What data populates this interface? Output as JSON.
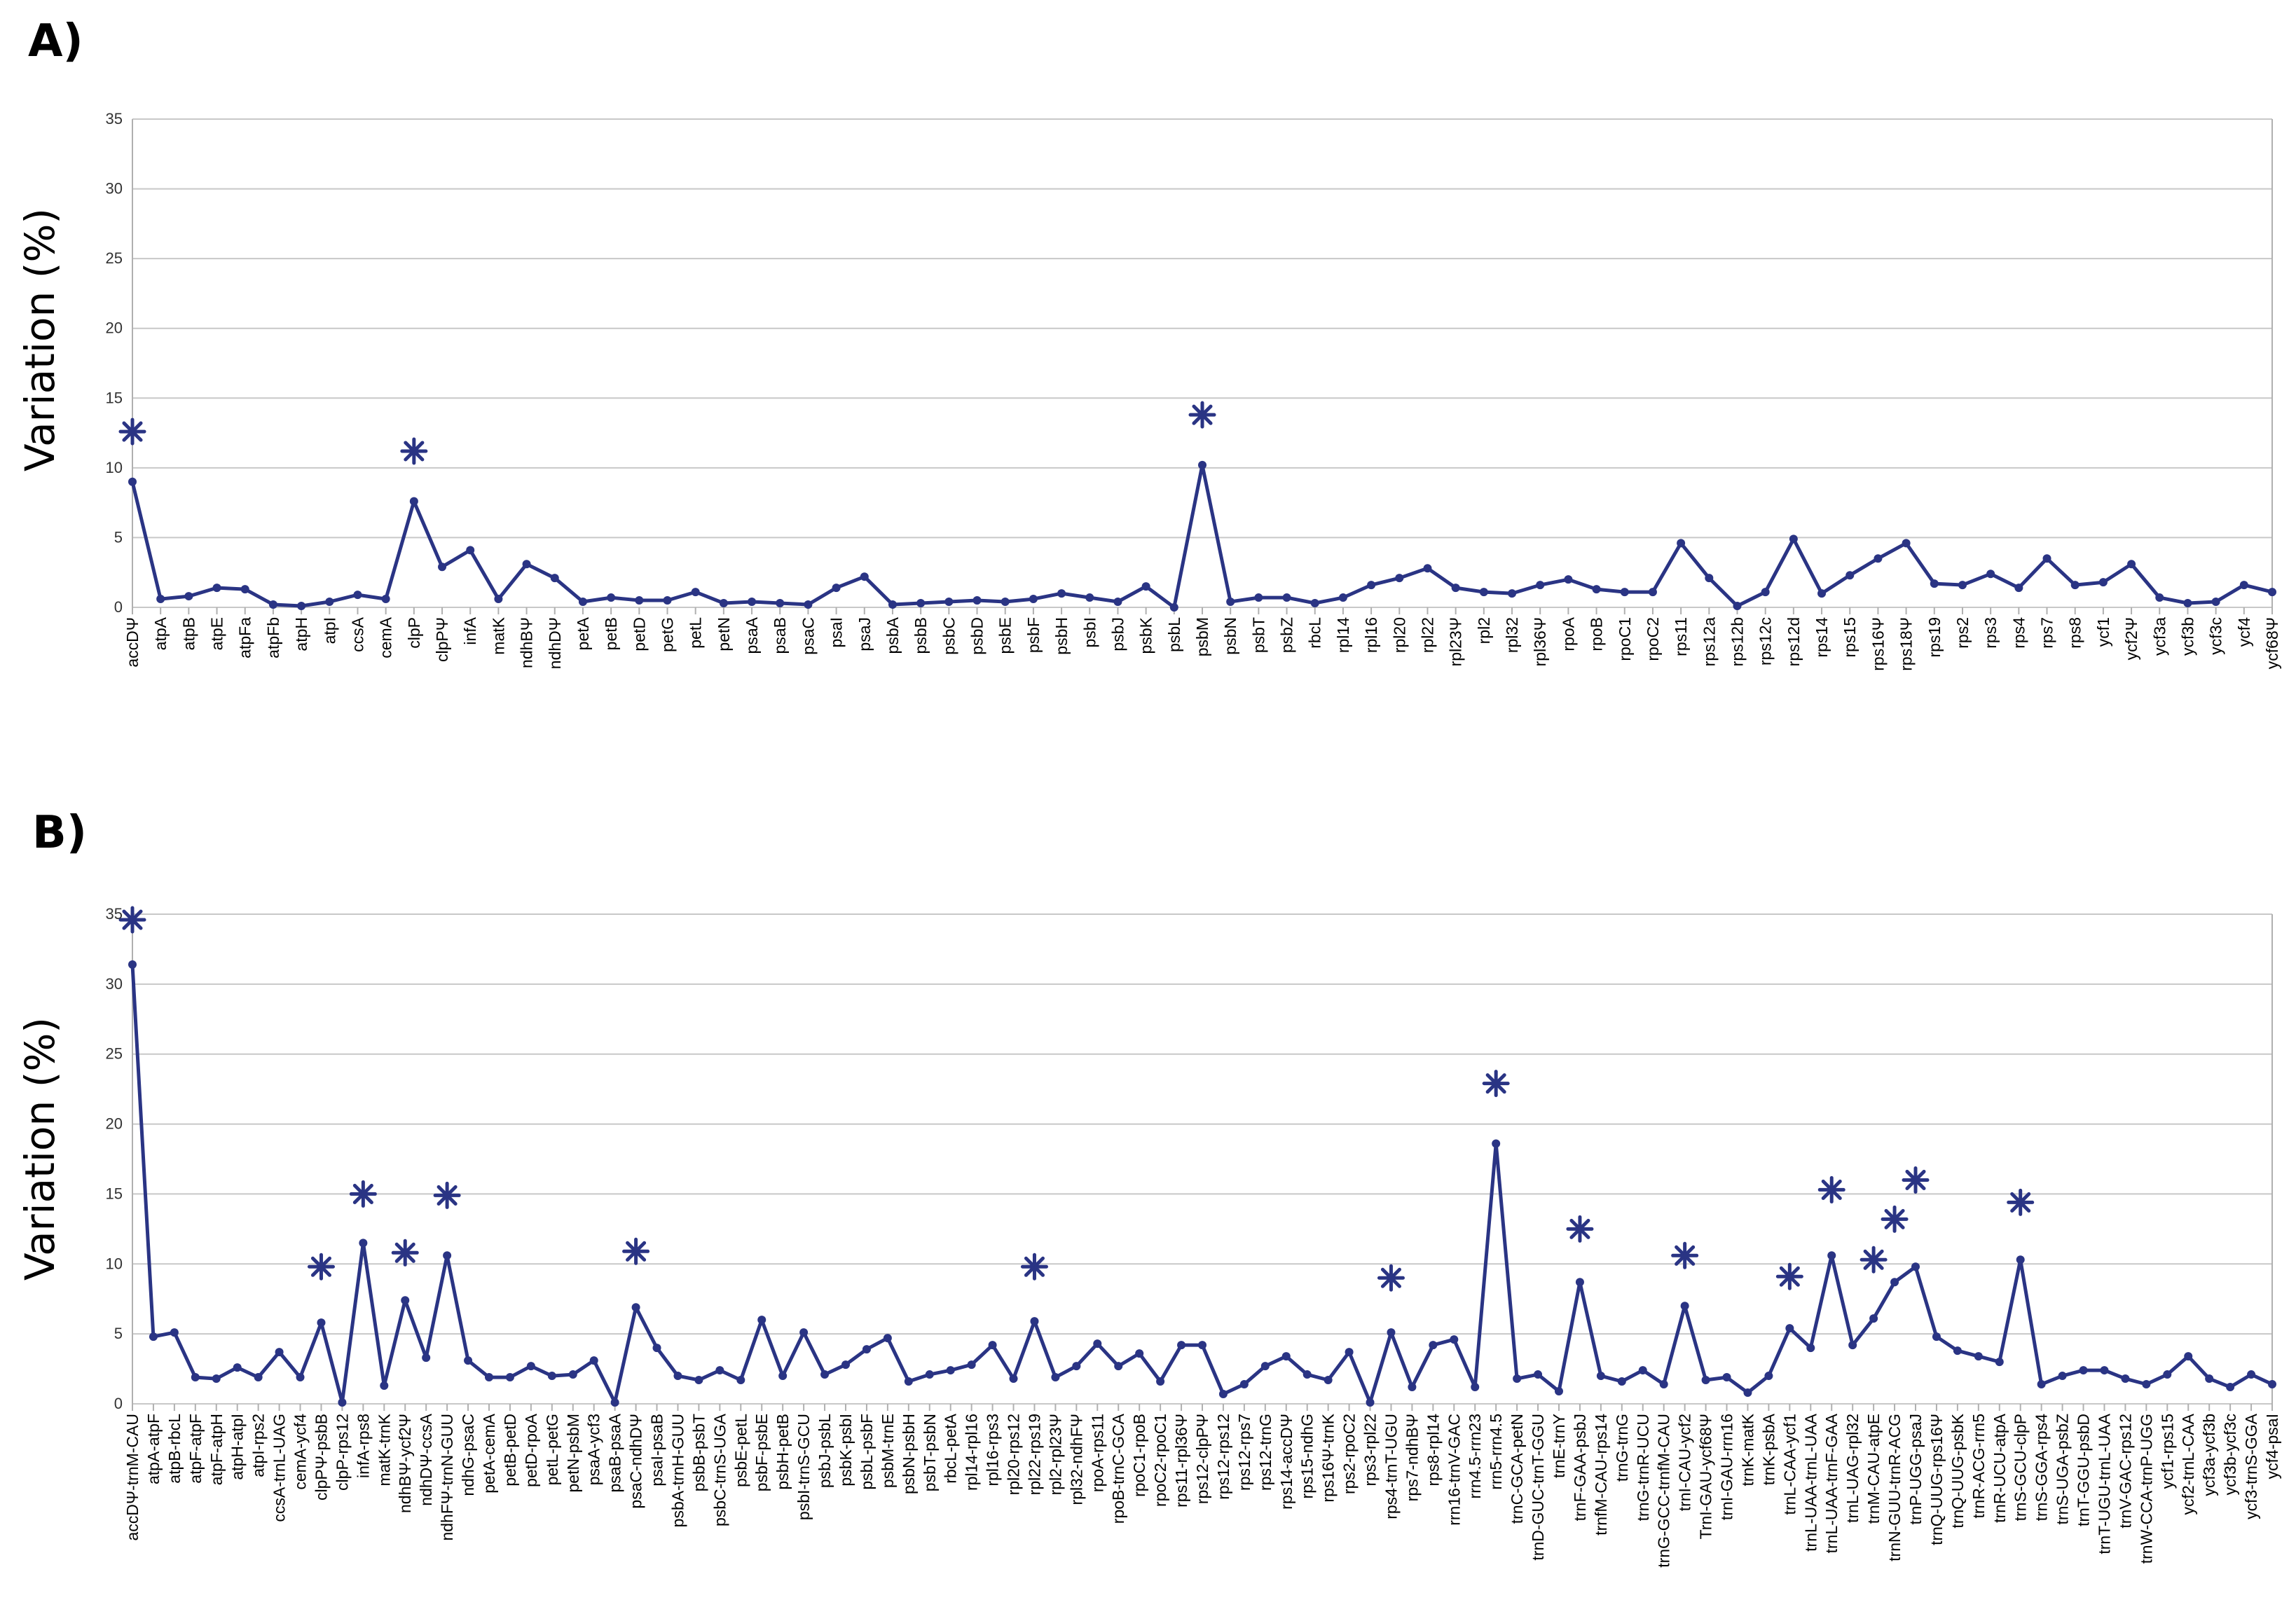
{
  "colors": {
    "series": "#2a3484",
    "grid": "#c8c8c8",
    "text": "#000000"
  },
  "chart_data": [
    {
      "type": "line",
      "panel_label": "A)",
      "title": "",
      "xlabel": "",
      "ylabel": "Variation (%)",
      "ylim": [
        0,
        35
      ],
      "yticks": [
        0,
        5,
        10,
        15,
        20,
        25,
        30,
        35
      ],
      "grid": true,
      "marker": "circle",
      "significance_marker": "asterisk",
      "categories": [
        "accDΨ",
        "atpA",
        "atpB",
        "atpE",
        "atpFa",
        "atpFb",
        "atpH",
        "atpI",
        "ccsA",
        "cemA",
        "clpP",
        "clpPΨ",
        "infA",
        "matK",
        "ndhBΨ",
        "ndhDΨ",
        "petA",
        "petB",
        "petD",
        "petG",
        "petL",
        "petN",
        "psaA",
        "psaB",
        "psaC",
        "psaI",
        "psaJ",
        "psbA",
        "psbB",
        "psbC",
        "psbD",
        "psbE",
        "psbF",
        "psbH",
        "psbI",
        "psbJ",
        "psbK",
        "psbL",
        "psbM",
        "psbN",
        "psbT",
        "psbZ",
        "rbcL",
        "rpl14",
        "rpl16",
        "rpl20",
        "rpl22",
        "rpl23Ψ",
        "rpl2",
        "rpl32",
        "rpl36Ψ",
        "rpoA",
        "rpoB",
        "rpoC1",
        "rpoC2",
        "rps11",
        "rps12a",
        "rps12b",
        "rps12c",
        "rps12d",
        "rps14",
        "rps15",
        "rps16Ψ",
        "rps18Ψ",
        "rps19",
        "rps2",
        "rps3",
        "rps4",
        "rps7",
        "rps8",
        "ycf1",
        "ycf2Ψ",
        "ycf3a",
        "ycf3b",
        "ycf3c",
        "ycf4",
        "ycf68Ψ"
      ],
      "values": [
        9.0,
        0.6,
        0.8,
        1.4,
        1.3,
        0.2,
        0.1,
        0.4,
        0.9,
        0.6,
        7.6,
        2.9,
        4.1,
        0.6,
        3.1,
        2.1,
        0.4,
        0.7,
        0.5,
        0.5,
        1.1,
        0.3,
        0.4,
        0.3,
        0.2,
        1.4,
        2.2,
        0.2,
        0.3,
        0.4,
        0.5,
        0.4,
        0.6,
        1.0,
        0.7,
        0.4,
        1.5,
        0.0,
        10.2,
        0.4,
        0.7,
        0.7,
        0.3,
        0.7,
        1.6,
        2.1,
        2.8,
        1.4,
        1.1,
        1.0,
        1.6,
        2.0,
        1.3,
        1.1,
        1.1,
        4.6,
        2.1,
        0.1,
        1.1,
        4.9,
        1.0,
        2.3,
        3.5,
        4.6,
        1.7,
        1.6,
        2.4,
        1.4,
        3.5,
        1.6,
        1.8,
        3.1,
        0.7,
        0.3,
        0.4,
        1.6,
        1.1
      ],
      "significant": [
        "accDΨ",
        "clpP",
        "psbM"
      ]
    },
    {
      "type": "line",
      "panel_label": "B)",
      "title": "",
      "xlabel": "",
      "ylabel": "Variation (%)",
      "ylim": [
        0,
        35
      ],
      "yticks": [
        0,
        5,
        10,
        15,
        20,
        25,
        30,
        35
      ],
      "grid": true,
      "marker": "circle",
      "significance_marker": "asterisk",
      "categories": [
        "accDΨ-trnM-CAU",
        "atpA-atpF",
        "atpB-rbcL",
        "atpF-atpF",
        "atpF-atpH",
        "atpH-atpI",
        "atpI-rps2",
        "ccsA-trnL-UAG",
        "cemA-ycf4",
        "clpPΨ-psbB",
        "clpP-rps12",
        "infA-rps8",
        "matK-trnK",
        "ndhBΨ-ycf2Ψ",
        "ndhDΨ-ccsA",
        "ndhFΨ-trnN-GUU",
        "ndhG-psaC",
        "petA-cemA",
        "petB-petD",
        "petD-rpoA",
        "petL-petG",
        "petN-psbM",
        "psaA-ycf3",
        "psaB-psaA",
        "psaC-ndhDΨ",
        "psaI-psaB",
        "psbA-trnH-GUU",
        "psbB-psbT",
        "psbC-trnS-UGA",
        "psbE-petL",
        "psbF-psbE",
        "psbH-petB",
        "psbI-trnS-GCU",
        "psbJ-psbL",
        "psbK-psbI",
        "psbL-psbF",
        "psbM-trnE",
        "psbN-psbH",
        "psbT-psbN",
        "rbcL-petA",
        "rpl14-rpl16",
        "rpl16-rps3",
        "rpl20-rps12",
        "rpl22-rps19",
        "rpl2-rpl23Ψ",
        "rpl32-ndhFΨ",
        "rpoA-rps11",
        "rpoB-trnC-GCA",
        "rpoC1-rpoB",
        "rpoC2-rpoC1",
        "rps11-rpl36Ψ",
        "rps12-clpPΨ",
        "rps12-rps12",
        "rps12-rps7",
        "rps12-trnG",
        "rps14-accDΨ",
        "rps15-ndhG",
        "rps16Ψ-trnK",
        "rps2-rpoC2",
        "rps3-rpl22",
        "rps4-trnT-UGU",
        "rps7-ndhBΨ",
        "rps8-rpl14",
        "rrn16-trnV-GAC",
        "rrn4.5-rrn23",
        "rrn5-rrn4.5",
        "trnC-GCA-petN",
        "trnD-GUC-trnT-GGU",
        "trnE-trnY",
        "trnF-GAA-psbJ",
        "trnfM-CAU-rps14",
        "trnG-trnG",
        "trnG-trnR-UCU",
        "trnG-GCC-trnfM-CAU",
        "trnI-CAU-ycf2",
        "TrnI-GAU-ycf68Ψ",
        "trnI-GAU-rrn16",
        "trnK-matK",
        "trnK-psbA",
        "trnL-CAA-ycf1",
        "trnL-UAA-trnL-UAA",
        "trnL-UAA-trnF-GAA",
        "trnL-UAG-rpl32",
        "trnM-CAU-atpE",
        "trnN-GUU-trnR-ACG",
        "trnP-UGG-psaJ",
        "trnQ-UUG-rps16Ψ",
        "trnQ-UUG-psbK",
        "trnR-ACG-rrn5",
        "trnR-UCU-atpA",
        "trnS-GCU-clpP",
        "trnS-GGA-rps4",
        "trnS-UGA-psbZ",
        "trnT-GGU-psbD",
        "trnT-UGU-trnL-UAA",
        "trnV-GAC-rps12",
        "trnW-CCA-trnP-UGG",
        "ycf1-rps15",
        "ycf2-trnL-CAA",
        "ycf3a-ycf3b",
        "ycf3b-ycf3c",
        "ycf3-trnS-GGA",
        "ycf4-psaI"
      ],
      "values": [
        31.4,
        4.8,
        5.1,
        1.9,
        1.8,
        2.6,
        1.9,
        3.7,
        1.9,
        5.8,
        0.1,
        11.5,
        1.3,
        7.4,
        3.3,
        10.6,
        3.1,
        1.9,
        1.9,
        2.7,
        2.0,
        2.1,
        3.1,
        0.1,
        6.9,
        4.0,
        2.0,
        1.7,
        2.4,
        1.7,
        6.0,
        2.0,
        5.1,
        2.1,
        2.8,
        3.9,
        4.7,
        1.6,
        2.1,
        2.4,
        2.8,
        4.2,
        1.8,
        5.9,
        1.9,
        2.7,
        4.3,
        2.7,
        3.6,
        1.6,
        4.2,
        4.2,
        0.7,
        1.4,
        2.7,
        3.4,
        2.1,
        1.7,
        3.7,
        0.1,
        5.1,
        1.2,
        4.2,
        4.6,
        1.2,
        18.6,
        1.8,
        2.1,
        0.9,
        8.7,
        2.0,
        1.6,
        2.4,
        1.4,
        7.0,
        1.7,
        1.9,
        0.8,
        2.0,
        5.4,
        4.0,
        10.6,
        4.2,
        6.1,
        8.7,
        9.8,
        4.8,
        3.8,
        3.4,
        3.0,
        10.3,
        1.4,
        2.0,
        2.4,
        2.4,
        1.8,
        1.4,
        2.1,
        3.4,
        1.8,
        1.2,
        2.1,
        1.4
      ],
      "significant": [
        "accDΨ-trnM-CAU",
        "clpPΨ-psbB",
        "infA-rps8",
        "ndhBΨ-ycf2Ψ",
        "ndhFΨ-trnN-GUU",
        "psaC-ndhDΨ",
        "rpl22-rps19",
        "rps4-trnT-UGU",
        "rrn5-rrn4.5",
        "trnF-GAA-psbJ",
        "trnI-CAU-ycf2",
        "trnL-CAA-ycf1",
        "trnL-UAA-trnF-GAA",
        "trnM-CAU-atpE",
        "trnN-GUU-trnR-ACG",
        "trnP-UGG-psaJ",
        "trnS-GCU-clpP"
      ],
      "significant_values": [
        34.6,
        9.8,
        15.0,
        10.8,
        14.9,
        10.9,
        9.8,
        9.0,
        22.9,
        12.5,
        10.6,
        9.1,
        15.3,
        10.3,
        13.2,
        16.0,
        14.4
      ]
    }
  ]
}
